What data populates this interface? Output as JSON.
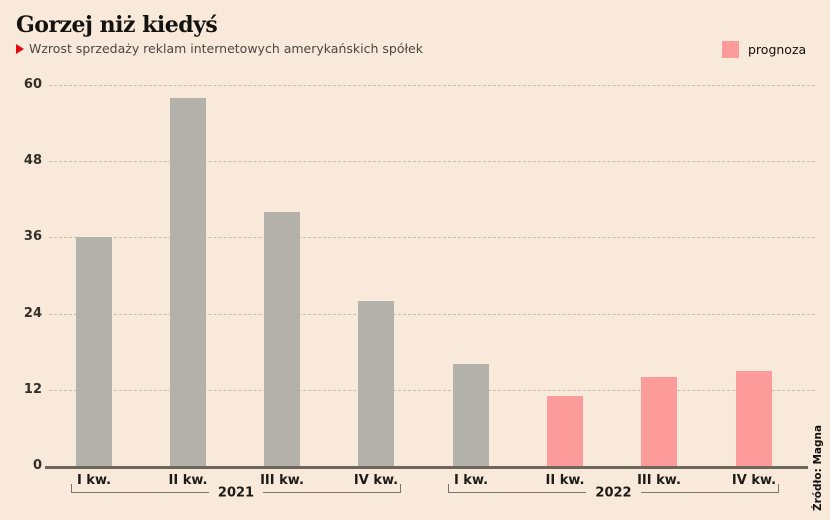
{
  "page": {
    "background": "#f9e9da"
  },
  "header": {
    "title": "Gorzej niż kiedyś",
    "subtitle": "Wzrost sprzedaży reklam internetowych amerykańskich spółek",
    "marker_icon": "red-triangle-right",
    "accent_color": "#e30613"
  },
  "legend": {
    "label": "prognoza",
    "swatch_color": "#fd9a9a"
  },
  "source": "Źródło: Magna",
  "chart_data": {
    "type": "bar",
    "title": "Gorzej niż kiedyś",
    "subtitle": "Wzrost sprzedaży reklam internetowych amerykańskich spółek",
    "ylim": [
      0,
      60
    ],
    "yticks": [
      0,
      12,
      24,
      36,
      48,
      60
    ],
    "grid": "horizontal-dashed",
    "legend_position": "top-right",
    "legend": [
      {
        "label": "prognoza",
        "color": "#fd9a9a"
      }
    ],
    "colors": {
      "actual": "#b2b2aa",
      "forecast": "#fd9a9a",
      "axis": "#6e675c",
      "gridline": "#c9bcab"
    },
    "groups": [
      {
        "year": "2021",
        "categories": [
          "I kw.",
          "II kw.",
          "III kw.",
          "IV kw."
        ],
        "values": [
          36,
          58,
          40,
          26
        ],
        "forecast": [
          false,
          false,
          false,
          false
        ]
      },
      {
        "year": "2022",
        "categories": [
          "I kw.",
          "II kw.",
          "III kw.",
          "IV kw."
        ],
        "values": [
          16,
          11,
          14,
          15
        ],
        "forecast": [
          false,
          true,
          true,
          true
        ]
      }
    ],
    "source": "Źródło: Magna"
  }
}
